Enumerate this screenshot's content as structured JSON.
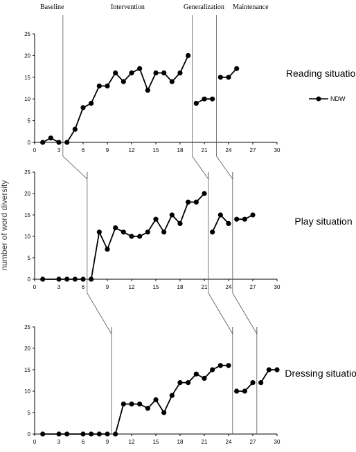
{
  "phases": [
    "Baseline",
    "Intervention",
    "Generalization",
    "Maintenance"
  ],
  "ylabel": "number of word diversity",
  "legend": "NDW",
  "chart_data": [
    {
      "type": "line",
      "label": "Reading situation",
      "xlim": [
        0,
        30
      ],
      "ylim": [
        0,
        25
      ],
      "xticks": [
        0,
        3,
        6,
        9,
        12,
        15,
        18,
        21,
        24,
        27,
        30
      ],
      "yticks": [
        0,
        5,
        10,
        15,
        20,
        25
      ],
      "phase_change_x": [
        3.5,
        19.5,
        22.5
      ],
      "series": [
        {
          "segments": [
            {
              "x": [
                1,
                2,
                3
              ],
              "y": [
                0,
                1,
                0
              ]
            },
            {
              "x": [
                4,
                5,
                6,
                7,
                8,
                9,
                10,
                11,
                12,
                13,
                14,
                15,
                16,
                17,
                18,
                19
              ],
              "y": [
                0,
                3,
                8,
                9,
                13,
                13,
                16,
                14,
                16,
                17,
                12,
                16,
                16,
                14,
                16,
                20
              ]
            },
            {
              "x": [
                20,
                21,
                22
              ],
              "y": [
                9,
                10,
                10
              ]
            },
            {
              "x": [
                23,
                24,
                25
              ],
              "y": [
                15,
                15,
                17
              ]
            }
          ]
        }
      ]
    },
    {
      "type": "line",
      "label": "Play situation",
      "xlim": [
        0,
        30
      ],
      "ylim": [
        0,
        25
      ],
      "xticks": [
        0,
        3,
        6,
        9,
        12,
        15,
        18,
        21,
        24,
        27,
        30
      ],
      "yticks": [
        0,
        5,
        10,
        15,
        20,
        25
      ],
      "phase_change_x": [
        6.5,
        21.5,
        24.5
      ],
      "series": [
        {
          "segments": [
            {
              "x": [
                1,
                3,
                4,
                5,
                6
              ],
              "y": [
                0,
                0,
                0,
                0,
                0
              ]
            },
            {
              "x": [
                7,
                8,
                9,
                10,
                11,
                12,
                13,
                14,
                15,
                16,
                17,
                18,
                19,
                20,
                21
              ],
              "y": [
                0,
                11,
                7,
                12,
                11,
                10,
                10,
                11,
                14,
                11,
                15,
                13,
                18,
                18,
                20
              ]
            },
            {
              "x": [
                22,
                23,
                24
              ],
              "y": [
                11,
                15,
                13
              ]
            },
            {
              "x": [
                25,
                26,
                27
              ],
              "y": [
                14,
                14,
                15
              ]
            }
          ]
        }
      ]
    },
    {
      "type": "line",
      "label": "Dressing situation",
      "xlim": [
        0,
        30
      ],
      "ylim": [
        0,
        25
      ],
      "xticks": [
        0,
        3,
        6,
        9,
        12,
        15,
        18,
        21,
        24,
        27,
        30
      ],
      "yticks": [
        0,
        5,
        10,
        15,
        20,
        25
      ],
      "phase_change_x": [
        9.5,
        24.5,
        27.5
      ],
      "series": [
        {
          "segments": [
            {
              "x": [
                1,
                3,
                4,
                6,
                7,
                8,
                9
              ],
              "y": [
                0,
                0,
                0,
                0,
                0,
                0,
                0
              ]
            },
            {
              "x": [
                10,
                11,
                12,
                13,
                14,
                15,
                16,
                17,
                18,
                19,
                20,
                21,
                22,
                23,
                24
              ],
              "y": [
                0,
                7,
                7,
                7,
                6,
                8,
                5,
                9,
                12,
                12,
                14,
                13,
                15,
                16,
                16
              ]
            },
            {
              "x": [
                25,
                26,
                27
              ],
              "y": [
                10,
                10,
                12
              ]
            },
            {
              "x": [
                28,
                29,
                30
              ],
              "y": [
                12,
                15,
                15
              ]
            }
          ]
        }
      ]
    }
  ]
}
